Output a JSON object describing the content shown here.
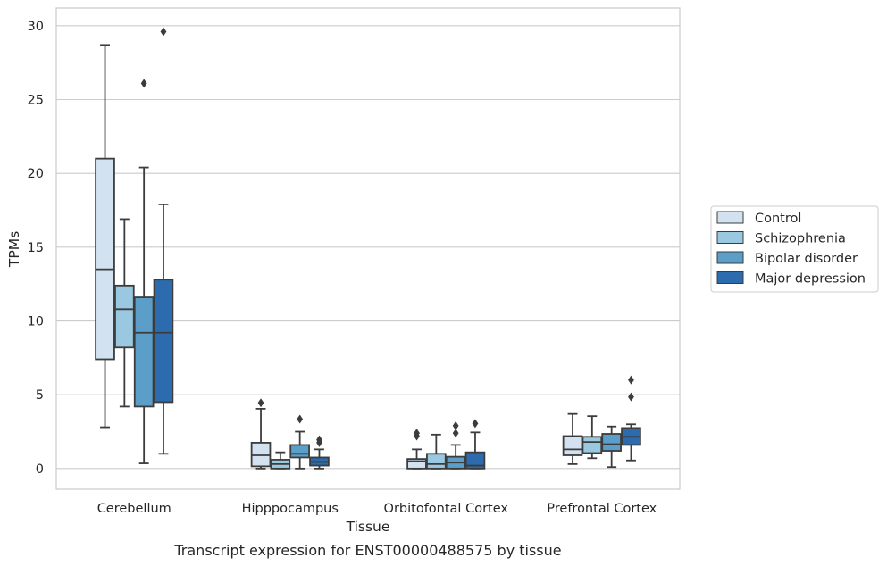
{
  "chart_data": {
    "type": "box",
    "title": "",
    "caption": "Transcript expression for ENST00000488575 by tissue",
    "xlabel": "Tissue",
    "ylabel": "TPMs",
    "ylim": [
      -1.4,
      31.2
    ],
    "yticks": [
      0,
      5,
      10,
      15,
      20,
      25,
      30
    ],
    "grid": "horizontal",
    "legend_position": "right",
    "categories": [
      "Cerebellum",
      "Hipppocampus",
      "Orbitofontal Cortex",
      "Prefrontal Cortex"
    ],
    "series": [
      {
        "name": "Control",
        "color": "#d2e2f1",
        "boxes": [
          {
            "min": 2.8,
            "q1": 7.4,
            "median": 13.5,
            "q3": 21.0,
            "max": 28.7,
            "outliers": []
          },
          {
            "min": 0.0,
            "q1": 0.15,
            "median": 0.9,
            "q3": 1.75,
            "max": 4.05,
            "outliers": [
              4.45
            ]
          },
          {
            "min": 0.0,
            "q1": 0.0,
            "median": 0.5,
            "q3": 0.65,
            "max": 1.3,
            "outliers": [
              2.2,
              2.4
            ]
          },
          {
            "min": 0.3,
            "q1": 0.9,
            "median": 1.3,
            "q3": 2.2,
            "max": 3.7,
            "outliers": []
          }
        ]
      },
      {
        "name": "Schizophrenia",
        "color": "#9ac8e0",
        "boxes": [
          {
            "min": 4.2,
            "q1": 8.2,
            "median": 10.8,
            "q3": 12.4,
            "max": 16.9,
            "outliers": []
          },
          {
            "min": 0.0,
            "q1": 0.0,
            "median": 0.3,
            "q3": 0.6,
            "max": 1.1,
            "outliers": []
          },
          {
            "min": 0.0,
            "q1": 0.0,
            "median": 0.3,
            "q3": 1.0,
            "max": 2.3,
            "outliers": []
          },
          {
            "min": 0.7,
            "q1": 1.05,
            "median": 1.8,
            "q3": 2.15,
            "max": 3.55,
            "outliers": []
          }
        ]
      },
      {
        "name": "Bipolar disorder",
        "color": "#5a9ec9",
        "boxes": [
          {
            "min": 0.35,
            "q1": 4.2,
            "median": 9.2,
            "q3": 11.6,
            "max": 20.4,
            "outliers": [
              26.1
            ]
          },
          {
            "min": 0.0,
            "q1": 0.75,
            "median": 1.0,
            "q3": 1.6,
            "max": 2.5,
            "outliers": [
              3.35
            ]
          },
          {
            "min": 0.0,
            "q1": 0.0,
            "median": 0.4,
            "q3": 0.8,
            "max": 1.6,
            "outliers": [
              2.4,
              2.9
            ]
          },
          {
            "min": 0.1,
            "q1": 1.2,
            "median": 1.65,
            "q3": 2.35,
            "max": 2.85,
            "outliers": []
          }
        ]
      },
      {
        "name": "Major depression",
        "color": "#2b6bae",
        "boxes": [
          {
            "min": 1.0,
            "q1": 4.5,
            "median": 9.2,
            "q3": 12.8,
            "max": 17.9,
            "outliers": [
              29.6
            ]
          },
          {
            "min": 0.0,
            "q1": 0.2,
            "median": 0.45,
            "q3": 0.75,
            "max": 1.3,
            "outliers": [
              1.75,
              1.95
            ]
          },
          {
            "min": 0.0,
            "q1": 0.0,
            "median": 0.2,
            "q3": 1.1,
            "max": 2.45,
            "outliers": [
              3.05
            ]
          },
          {
            "min": 0.55,
            "q1": 1.6,
            "median": 2.15,
            "q3": 2.75,
            "max": 3.0,
            "outliers": [
              4.85,
              6.0
            ]
          }
        ]
      }
    ]
  }
}
